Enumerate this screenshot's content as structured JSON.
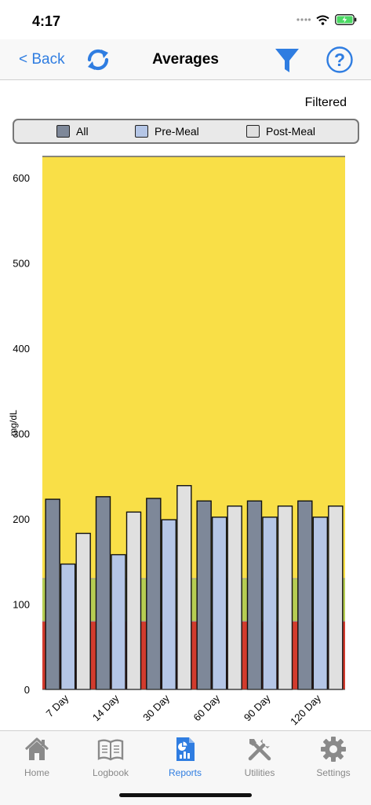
{
  "status_bar": {
    "time": "4:17"
  },
  "nav": {
    "back_label": "< Back",
    "title": "Averages"
  },
  "filter_status": "Filtered",
  "colors": {
    "accent": "#2f7de1",
    "high_zone": "#f9df47",
    "target_zone": "#b6cd52",
    "low_zone": "#d23b2d"
  },
  "chart_data": {
    "type": "bar",
    "ylabel": "mg/dL",
    "ylim": [
      0,
      625
    ],
    "yticks": [
      0,
      100,
      200,
      300,
      400,
      500,
      600
    ],
    "categories": [
      "7 Day",
      "14 Day",
      "30 Day",
      "60 Day",
      "90 Day",
      "120 Day"
    ],
    "series": [
      {
        "name": "All",
        "color": "#7e8899",
        "values": [
          223,
          226,
          224,
          221,
          221,
          221
        ]
      },
      {
        "name": "Pre-Meal",
        "color": "#b5c6e6",
        "values": [
          147,
          158,
          199,
          202,
          202,
          202
        ]
      },
      {
        "name": "Post-Meal",
        "color": "#e0e0e0",
        "values": [
          183,
          208,
          239,
          215,
          215,
          215
        ]
      }
    ],
    "zones": [
      {
        "from": 0,
        "to": 80,
        "color": "#d23b2d"
      },
      {
        "from": 80,
        "to": 130,
        "color": "#b6cd52"
      },
      {
        "from": 130,
        "to": 625,
        "color": "#f9df47"
      }
    ],
    "legend_position": "top",
    "grid": false
  },
  "tabs": [
    {
      "label": "Home",
      "icon": "home-icon"
    },
    {
      "label": "Logbook",
      "icon": "book-icon"
    },
    {
      "label": "Reports",
      "icon": "reports-icon"
    },
    {
      "label": "Utilities",
      "icon": "tools-icon"
    },
    {
      "label": "Settings",
      "icon": "gear-icon"
    }
  ]
}
